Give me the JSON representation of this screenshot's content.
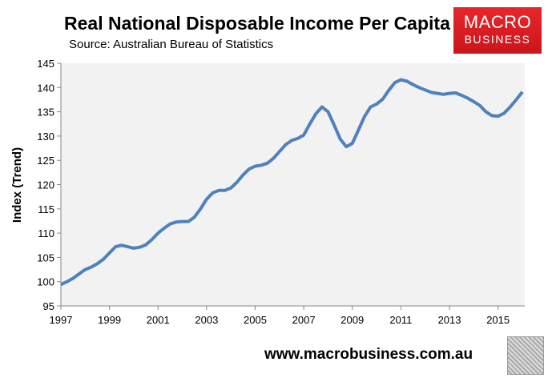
{
  "chart_data": {
    "type": "line",
    "title": "Real National Disposable Income Per Capita",
    "subtitle": "Source: Australian Bureau of Statistics",
    "xlabel": "",
    "ylabel": "Index (Trend)",
    "xlim": [
      1997,
      2016.1
    ],
    "ylim": [
      95,
      145
    ],
    "x_ticks": [
      "1997",
      "1999",
      "2001",
      "2003",
      "2005",
      "2007",
      "2009",
      "2011",
      "2013",
      "2015"
    ],
    "y_ticks": [
      95,
      100,
      105,
      110,
      115,
      120,
      125,
      130,
      135,
      140,
      145
    ],
    "grid": false,
    "background": "#f2f2f2",
    "line_color": "#4f81bd",
    "series": [
      {
        "x": [
          1997,
          1997.25,
          1997.5,
          1997.75,
          1998,
          1998.25,
          1998.5,
          1998.75,
          1999,
          1999.25,
          1999.5,
          1999.75,
          2000,
          2000.25,
          2000.5,
          2000.75,
          2001,
          2001.25,
          2001.5,
          2001.75,
          2002,
          2002.25,
          2002.5,
          2002.75,
          2003,
          2003.25,
          2003.5,
          2003.75,
          2004,
          2004.25,
          2004.5,
          2004.75,
          2005,
          2005.25,
          2005.5,
          2005.75,
          2006,
          2006.25,
          2006.5,
          2006.75,
          2007,
          2007.25,
          2007.5,
          2007.75,
          2008,
          2008.25,
          2008.5,
          2008.75,
          2009,
          2009.25,
          2009.5,
          2009.75,
          2010,
          2010.25,
          2010.5,
          2010.75,
          2011,
          2011.25,
          2011.5,
          2011.75,
          2012,
          2012.25,
          2012.5,
          2012.75,
          2013,
          2013.25,
          2013.5,
          2013.75,
          2014,
          2014.25,
          2014.5,
          2014.75,
          2015,
          2015.25,
          2015.5,
          2015.75,
          2016
        ],
        "values": [
          99.4,
          100,
          100.7,
          101.6,
          102.5,
          103,
          103.7,
          104.6,
          105.9,
          107.2,
          107.5,
          107.2,
          106.9,
          107.1,
          107.6,
          108.7,
          110,
          111,
          111.9,
          112.3,
          112.4,
          112.4,
          113.3,
          115,
          117,
          118.3,
          118.8,
          118.8,
          119.3,
          120.5,
          122,
          123.2,
          123.8,
          124,
          124.4,
          125.4,
          126.8,
          128.2,
          129.1,
          129.5,
          130.2,
          132.5,
          134.6,
          136,
          135,
          132.3,
          129.4,
          127.8,
          128.5,
          131.2,
          134,
          136,
          136.6,
          137.6,
          139.4,
          141,
          141.6,
          141.3,
          140.6,
          140,
          139.5,
          139,
          138.8,
          138.6,
          138.8,
          138.9,
          138.4,
          137.8,
          137.1,
          136.3,
          135,
          134.2,
          134.1,
          134.7,
          136,
          137.5,
          139.1
        ]
      }
    ]
  },
  "logo": {
    "line1": "MACRO",
    "line2": "BUSINESS"
  },
  "footer": "www.macrobusiness.com.au"
}
